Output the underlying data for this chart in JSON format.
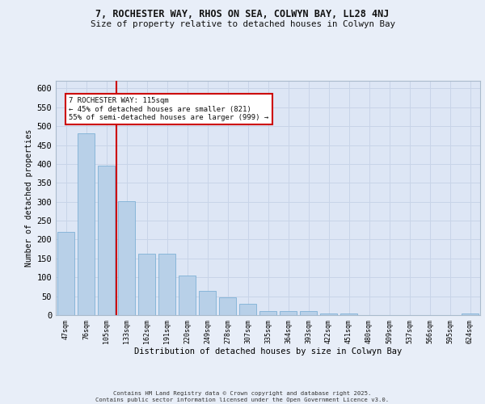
{
  "title_line1": "7, ROCHESTER WAY, RHOS ON SEA, COLWYN BAY, LL28 4NJ",
  "title_line2": "Size of property relative to detached houses in Colwyn Bay",
  "xlabel": "Distribution of detached houses by size in Colwyn Bay",
  "ylabel": "Number of detached properties",
  "categories": [
    "47sqm",
    "76sqm",
    "105sqm",
    "133sqm",
    "162sqm",
    "191sqm",
    "220sqm",
    "249sqm",
    "278sqm",
    "307sqm",
    "335sqm",
    "364sqm",
    "393sqm",
    "422sqm",
    "451sqm",
    "480sqm",
    "509sqm",
    "537sqm",
    "566sqm",
    "595sqm",
    "624sqm"
  ],
  "values": [
    220,
    480,
    395,
    302,
    163,
    163,
    105,
    65,
    47,
    30,
    10,
    10,
    10,
    5,
    5,
    0,
    0,
    0,
    0,
    0,
    5
  ],
  "bar_color": "#b8d0e8",
  "bar_edge_color": "#6fa8d0",
  "grid_color": "#c8d4e8",
  "bg_color": "#dde6f5",
  "fig_color": "#e8eef8",
  "ref_line_x": 2.5,
  "ref_line_color": "#cc0000",
  "annotation_text": "7 ROCHESTER WAY: 115sqm\n← 45% of detached houses are smaller (821)\n55% of semi-detached houses are larger (999) →",
  "annotation_box_color": "#ffffff",
  "annotation_box_edge": "#cc0000",
  "footer": "Contains HM Land Registry data © Crown copyright and database right 2025.\nContains public sector information licensed under the Open Government Licence v3.0.",
  "ylim": [
    0,
    620
  ],
  "yticks": [
    0,
    50,
    100,
    150,
    200,
    250,
    300,
    350,
    400,
    450,
    500,
    550,
    600
  ]
}
